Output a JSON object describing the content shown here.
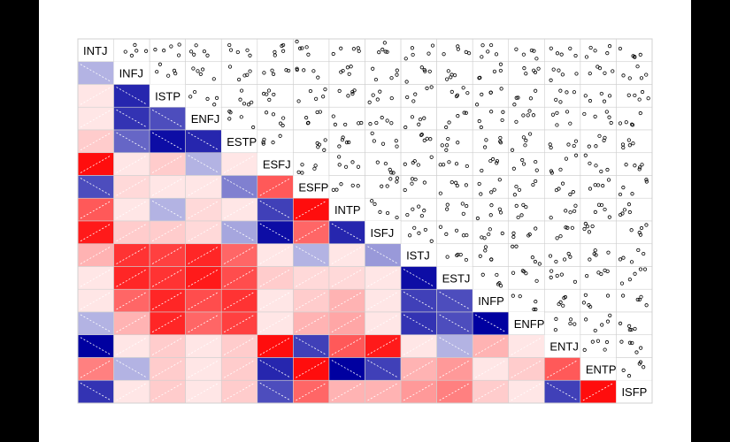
{
  "chart_data": {
    "type": "heatmap",
    "variables": [
      "INTJ",
      "INFJ",
      "ISTP",
      "ENFJ",
      "ESTP",
      "ESFJ",
      "ESFP",
      "INTP",
      "ISFJ",
      "ISTJ",
      "ESTJ",
      "INFP",
      "ENFP",
      "ENTJ",
      "ENTP",
      "ISFP"
    ],
    "lower_panel": "shade",
    "upper_panel": "pts",
    "diagonal": "variable names",
    "color_scale": {
      "negative": "#0000a0",
      "zero": "#ffffff",
      "positive": "#ff0000"
    },
    "correlations_lower": [
      [],
      [
        -0.3
      ],
      [
        0.1,
        -0.85
      ],
      [
        0.1,
        -0.8,
        -0.7
      ],
      [
        0.2,
        -0.6,
        -0.95,
        -0.85
      ],
      [
        0.95,
        0.1,
        0.2,
        -0.3,
        0.1
      ],
      [
        -0.7,
        0.15,
        0.1,
        0.1,
        -0.5,
        0.65
      ],
      [
        0.65,
        0.1,
        -0.3,
        0.15,
        0.1,
        -0.75,
        0.95
      ],
      [
        0.9,
        0.2,
        0.2,
        0.15,
        -0.35,
        -0.95,
        0.6,
        -0.85
      ],
      [
        0.3,
        0.8,
        0.75,
        0.85,
        0.6,
        0.1,
        -0.3,
        0.1,
        -0.4
      ],
      [
        0.1,
        0.85,
        0.8,
        0.9,
        0.7,
        0.2,
        0.15,
        0.15,
        0.1,
        -0.95
      ],
      [
        0.1,
        0.6,
        0.85,
        0.7,
        0.8,
        0.1,
        0.2,
        0.3,
        0.1,
        -0.75,
        -0.7
      ],
      [
        -0.3,
        0.3,
        0.85,
        0.6,
        0.75,
        0.1,
        0.3,
        0.35,
        0.1,
        -0.8,
        -0.7,
        -1.0
      ],
      [
        -1.0,
        0.1,
        0.2,
        0.1,
        0.2,
        0.95,
        -0.75,
        0.65,
        0.9,
        0.1,
        -0.3,
        0.3,
        0.1
      ],
      [
        0.5,
        -0.3,
        0.2,
        0.1,
        0.2,
        -0.85,
        0.95,
        -1.0,
        -0.75,
        0.3,
        0.4,
        0.1,
        0.2,
        0.65
      ],
      [
        -0.8,
        0.1,
        0.2,
        0.1,
        0.2,
        -0.7,
        0.6,
        0.3,
        0.3,
        0.4,
        0.5,
        0.2,
        0.1,
        -0.75,
        0.95
      ]
    ]
  }
}
